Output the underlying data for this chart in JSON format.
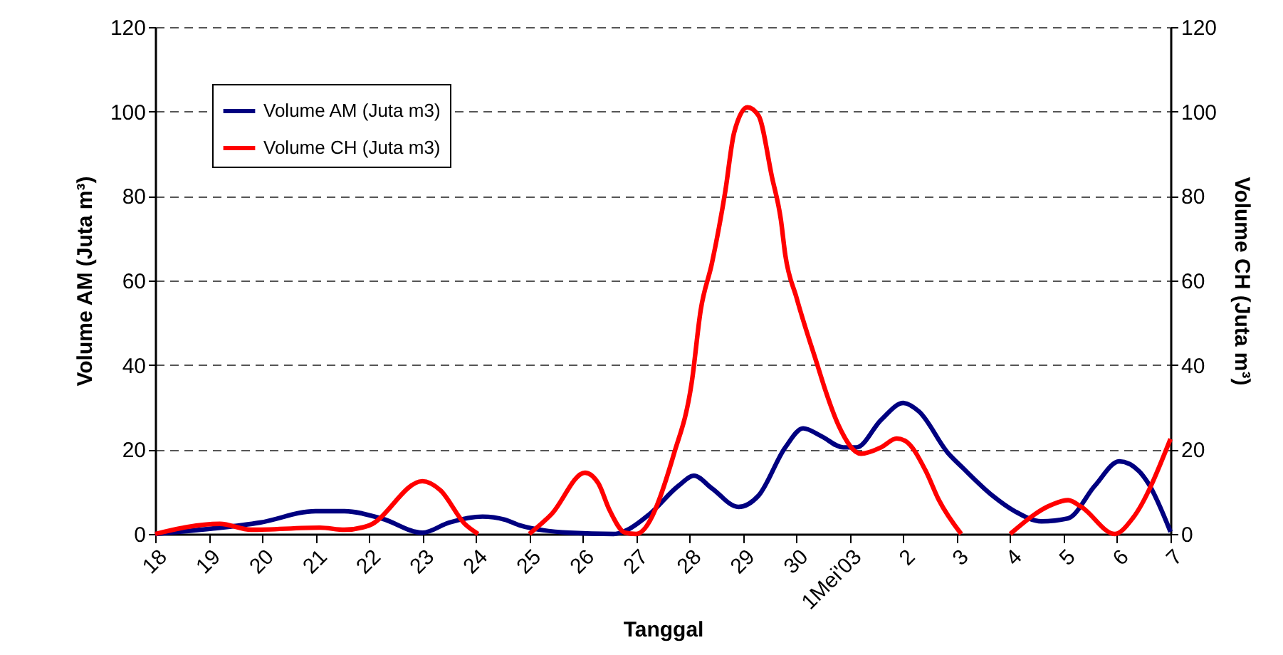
{
  "chart_data": {
    "type": "line",
    "xlabel": "Tanggal",
    "ylabel": "Volume AM (Juta m³)",
    "y2label": "Volume CH (Juta m³)",
    "xlim": [
      "--04-18",
      "--05-07"
    ],
    "xticks": [
      {
        "value": "--04-18",
        "label": "18"
      },
      {
        "value": "--04-19",
        "label": "19"
      },
      {
        "value": "--04-20",
        "label": "20"
      },
      {
        "value": "--04-21",
        "label": "21"
      },
      {
        "value": "--04-22",
        "label": "22"
      },
      {
        "value": "--04-23",
        "label": "23"
      },
      {
        "value": "--04-24",
        "label": "24"
      },
      {
        "value": "--04-25",
        "label": "25"
      },
      {
        "value": "--04-26",
        "label": "26"
      },
      {
        "value": "--04-27",
        "label": "27"
      },
      {
        "value": "--04-28",
        "label": "28"
      },
      {
        "value": "--04-29",
        "label": "29"
      },
      {
        "value": "--04-30",
        "label": "30"
      },
      {
        "value": "--05-01",
        "label": "1Mei'03"
      },
      {
        "value": "--05-02",
        "label": "2"
      },
      {
        "value": "--05-03",
        "label": "3"
      },
      {
        "value": "--05-04",
        "label": "4"
      },
      {
        "value": "--05-05",
        "label": "5"
      },
      {
        "value": "--05-06",
        "label": "6"
      },
      {
        "value": "--05-07",
        "label": "7"
      }
    ],
    "ylim": [
      0,
      120
    ],
    "yticks": [
      0,
      20,
      40,
      60,
      80,
      100,
      120
    ],
    "y2lim": [
      0,
      120
    ],
    "y2ticks": [
      0,
      20,
      40,
      60,
      80,
      100,
      120
    ],
    "grid": "y",
    "legend": "top left",
    "line_style": "solid",
    "series": [
      {
        "name": "Volume AM (Juta m3)",
        "color": "#000080",
        "x": [
          "--04-18T00:00",
          "--04-19T02:00",
          "--04-19T23:00",
          "--04-21T00:00",
          "--04-21T13:00",
          "--04-22T06:00",
          "--04-23T00:00",
          "--04-23T12:00",
          "--04-24T03:00",
          "--04-24T13:00",
          "--04-24T20:00",
          "--04-25T18:00",
          "--04-26T14:00",
          "--04-26T19:00",
          "--04-27T06:00",
          "--04-27T19:00",
          "--04-28T02:00",
          "--04-28T10:00",
          "--04-28T22:00",
          "--04-29T07:00",
          "--04-29T19:00",
          "--04-30T03:00",
          "--04-30T11:00",
          "--04-30T21:00",
          "--05-01T03:00",
          "--05-01T14:00",
          "--05-02T00:00",
          "--05-02T07:00",
          "--05-02T20:00",
          "--05-03T03:00",
          "--05-03T16:00",
          "--05-04T02:00",
          "--05-04T14:00",
          "--05-05T02:00",
          "--05-05T14:00",
          "--05-06T01:00",
          "--05-06T10:00",
          "--05-06T14:00",
          "--05-07T00:00"
        ],
        "values": [
          0,
          1.3,
          2.7,
          5.4,
          5.4,
          3.6,
          0.3,
          2.7,
          4.1,
          3.4,
          2,
          0.3,
          0,
          0.7,
          4.7,
          11.4,
          13.8,
          10.8,
          6.4,
          9.1,
          20.5,
          25,
          23.2,
          20.5,
          20.5,
          27,
          31,
          29,
          19.2,
          15.5,
          9.1,
          5.4,
          3,
          3.7,
          11.4,
          17.2,
          14.8,
          12,
          0.5
        ]
      },
      {
        "name": "Volume CH (Juta m3)",
        "color": "#ff0000",
        "axis": "y2",
        "x": [
          "--04-18T00:00",
          "--04-19T05:00",
          "--04-19T19:00",
          "--04-21T02:00",
          "--04-21T13:00",
          "--04-22T00:00",
          "--04-23T00:00",
          "--04-23T08:00",
          "--04-23T19:00",
          "--04-24T01:00",
          "--04-24T12:00",
          "--04-25T00:00",
          "--04-25T10:00",
          "--04-26T01:00",
          "--04-26T07:00",
          "--04-26T12:00",
          "--04-26T19:00",
          "--04-27T00:00",
          "--04-27T17:00",
          "--04-28T01:00",
          "--04-28T05:00",
          "--04-28T10:00",
          "--04-28T16:00",
          "--04-28T20:00",
          "--04-29T02:00",
          "--04-29T07:00",
          "--04-29T13:00",
          "--04-29T17:00",
          "--04-29T19:00",
          "--04-30T00:00",
          "--04-30T10:00",
          "--04-30T13:00",
          "--04-30T19:00",
          "--05-01T05:00",
          "--05-01T14:00",
          "--05-01T21:00",
          "--05-02T01:00",
          "--05-02T10:00",
          "--05-02T16:00",
          "--05-03T02:00",
          "--05-03T12:00",
          "--05-04T00:00",
          "--05-04T19:00",
          "--05-05T02:00",
          "--05-05T08:00",
          "--05-05T23:00",
          "--05-06T07:00",
          "--05-07T00:00"
        ],
        "values": [
          0,
          2.4,
          1,
          1.5,
          1,
          2,
          12.5,
          10.4,
          2.4,
          0,
          null,
          0,
          4.7,
          14.5,
          12,
          5.7,
          0.3,
          0,
          19,
          36,
          53,
          64,
          81,
          95,
          101,
          99,
          84.5,
          74.4,
          66,
          56,
          39,
          34,
          25.6,
          19,
          20.5,
          22.6,
          22,
          15,
          8,
          0,
          null,
          0,
          7,
          8,
          6.4,
          0,
          3.7,
          22.5
        ]
      }
    ]
  }
}
